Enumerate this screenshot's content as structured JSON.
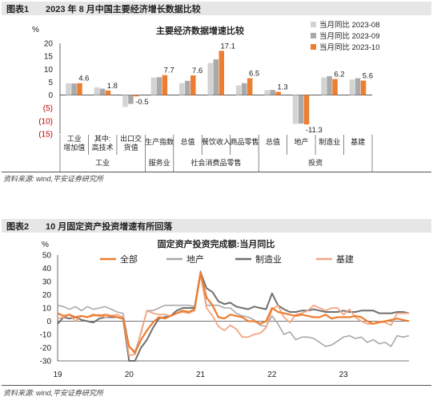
{
  "figure1": {
    "number": "图表1",
    "title": "2023 年 8 月中国主要经济增长数据比较",
    "source": "资料来源: wind,平安证券研究所"
  },
  "figure2": {
    "number": "图表2",
    "title": "10 月固定资产投资增速有所回落",
    "source": "资料来源: wind,平安证券研究所"
  },
  "chart_data": [
    {
      "type": "bar",
      "title": "主要经济数据增速比较",
      "ylabel": "%",
      "ylim": [
        -15,
        20
      ],
      "yticks": [
        "20",
        "15",
        "10",
        "5",
        "0",
        "(5)",
        "(10)",
        "(15)"
      ],
      "ytick_values": [
        20,
        15,
        10,
        5,
        0,
        -5,
        -10,
        -15
      ],
      "negative_tick_color": "#c00000",
      "categories": [
        "工业\n增加值",
        "其中:\n高技术",
        "出口交\n货值",
        "生产指数",
        "总值",
        "餐饮收入",
        "商品零售",
        "总值",
        "地产",
        "制造业",
        "基建"
      ],
      "groups": [
        {
          "label": "工业",
          "from": 0,
          "to": 2
        },
        {
          "label": "服务业",
          "from": 3,
          "to": 3
        },
        {
          "label": "社会消费品零售",
          "from": 4,
          "to": 6
        },
        {
          "label": "投资",
          "from": 7,
          "to": 10
        }
      ],
      "series": [
        {
          "name": "当月同比 2023-08",
          "color": "#d3d3d3",
          "values": [
            4.5,
            3.0,
            -4.6,
            6.8,
            4.6,
            12.4,
            3.7,
            1.9,
            -11.1,
            6.8,
            6.0
          ]
        },
        {
          "name": "当月同比 2023-09",
          "color": "#a9a9a9",
          "values": [
            4.5,
            2.5,
            -3.4,
            6.9,
            5.5,
            13.8,
            4.6,
            2.0,
            -11.0,
            7.3,
            6.5
          ]
        },
        {
          "name": "当月同比 2023-10",
          "color": "#ed7d31",
          "values": [
            4.6,
            1.8,
            -0.5,
            7.7,
            7.6,
            17.1,
            6.5,
            1.3,
            -11.3,
            6.2,
            5.6
          ]
        }
      ],
      "data_labels": [
        {
          "index": 0,
          "text": "4.6"
        },
        {
          "index": 1,
          "text": "1.8"
        },
        {
          "index": 2,
          "text": "-0.5"
        },
        {
          "index": 3,
          "text": "7.7"
        },
        {
          "index": 4,
          "text": "7.6"
        },
        {
          "index": 5,
          "text": "17.1"
        },
        {
          "index": 6,
          "text": "6.5"
        },
        {
          "index": 7,
          "text": "1.3"
        },
        {
          "index": 8,
          "text": "-11.3"
        },
        {
          "index": 9,
          "text": "6.2"
        },
        {
          "index": 10,
          "text": "5.6"
        }
      ],
      "legend_position": "top-right",
      "grid": false
    },
    {
      "type": "line",
      "title": "固定资产投资完成额:当月同比",
      "ylabel": "%",
      "ylim": [
        -30,
        50
      ],
      "yticks": [
        50,
        40,
        30,
        20,
        10,
        0,
        -10,
        -20,
        -30
      ],
      "x_start": "2019-01",
      "x_end": "2023-12",
      "xticks": [
        "19",
        "20",
        "21",
        "22",
        "23"
      ],
      "xtick_months": [
        "2019-01",
        "2020-01",
        "2021-01",
        "2022-01",
        "2023-01"
      ],
      "legend_position": "top",
      "grid": false,
      "series": [
        {
          "name": "全部",
          "color": "#ed7d31",
          "width": 2.2,
          "values": [
            6,
            4,
            5,
            3,
            4,
            3,
            5,
            4,
            5,
            4,
            3,
            2,
            -19,
            -24,
            -14,
            -7,
            -1,
            3,
            2,
            4,
            6,
            8,
            7,
            9,
            37,
            18,
            12,
            3,
            2,
            5,
            4,
            3,
            0,
            0,
            -2,
            0,
            10,
            7,
            6,
            5,
            4,
            5,
            4,
            3,
            3,
            5,
            2,
            3,
            3,
            3,
            4,
            3,
            0,
            -2,
            -1,
            0,
            1,
            2,
            1,
            0
          ]
        },
        {
          "name": "地产",
          "color": "#a9a9a9",
          "width": 1.6,
          "values": [
            12,
            11,
            9,
            11,
            8,
            11,
            9,
            10,
            11,
            9,
            7,
            6,
            -19,
            -23,
            -9,
            8,
            8,
            10,
            12,
            12,
            12,
            12,
            12,
            11,
            38,
            12,
            12,
            12,
            10,
            10,
            6,
            4,
            3,
            1,
            -3,
            -4,
            4,
            -2,
            -10,
            -8,
            -14,
            -12,
            -12,
            -13,
            -16,
            -19,
            -18,
            -15,
            -12,
            -11,
            -13,
            -12,
            -16,
            -14,
            -17,
            -16,
            -19,
            -11,
            -12,
            -11
          ]
        },
        {
          "name": "制造业",
          "color": "#6f6f6f",
          "width": 2.0,
          "values": [
            -2,
            3,
            2,
            3,
            1,
            0,
            -1,
            2,
            3,
            3,
            3,
            2,
            -30,
            -30,
            -20,
            -14,
            -5,
            2,
            3,
            4,
            8,
            10,
            10,
            10,
            37,
            25,
            22,
            15,
            13,
            14,
            11,
            10,
            9,
            11,
            10,
            9,
            21,
            12,
            9,
            7,
            7,
            8,
            8,
            9,
            8,
            7,
            7,
            7,
            8,
            7,
            7,
            8,
            8,
            8,
            6,
            6,
            6,
            7,
            7,
            6
          ]
        },
        {
          "name": "基建",
          "color": "#f4a582",
          "width": 1.8,
          "values": [
            2,
            3,
            5,
            0,
            4,
            3,
            4,
            5,
            3,
            4,
            5,
            3,
            -26,
            -25,
            -8,
            8,
            6,
            5,
            5,
            4,
            6,
            7,
            6,
            8,
            35,
            10,
            4,
            -4,
            -7,
            -3,
            -6,
            -12,
            -12,
            -10,
            -9,
            -5,
            9,
            12,
            3,
            -1,
            5,
            6,
            8,
            12,
            10,
            8,
            10,
            10,
            5,
            9,
            3,
            0,
            -2,
            -2,
            0,
            -1,
            -3,
            6,
            6,
            6
          ]
        }
      ]
    }
  ]
}
